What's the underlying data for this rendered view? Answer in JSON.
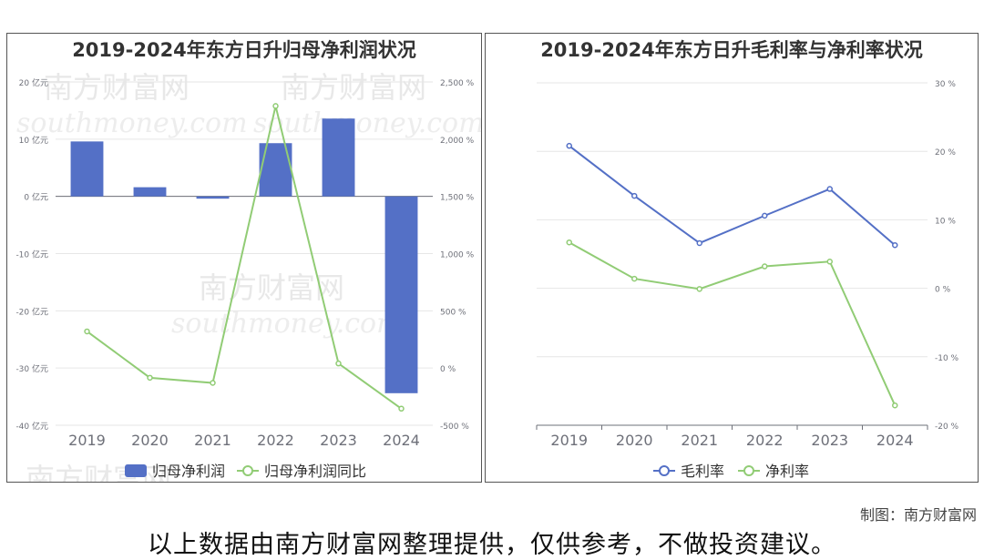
{
  "charts": {
    "left": {
      "title": "2019-2024年东方日升归母净利润状况"
    },
    "right": {
      "title": "2019-2024年东方日升毛利率与净利率状况"
    }
  },
  "watermark": {
    "brand": "南方财富网",
    "domain": "southmoney.com"
  },
  "credit": "制图：南方财富网",
  "footer_note": "以上数据由南方财富网整理提供，仅供参考，不做投资建议。",
  "colors": {
    "blue": "#5470c6",
    "green": "#91cc75",
    "grid": "#e6e6e6",
    "axis": "#6e7079"
  },
  "chart_data": [
    {
      "type": "bar+line",
      "title": "2019-2024年东方日升归母净利润状况",
      "categories": [
        "2019",
        "2020",
        "2021",
        "2022",
        "2023",
        "2024"
      ],
      "y_left": {
        "ticks": [
          20,
          10,
          0,
          -10,
          -20,
          -30,
          -40
        ],
        "tick_labels": [
          "20 亿元",
          "10 亿元",
          "0 亿元",
          "-10 亿元",
          "-20 亿元",
          "-30 亿元",
          "-40 亿元"
        ],
        "range": [
          -40,
          20
        ]
      },
      "y_right": {
        "ticks": [
          2500,
          2000,
          1500,
          1000,
          500,
          0,
          -500
        ],
        "tick_labels": [
          "2,500 %",
          "2,000 %",
          "1,500 %",
          "1,000 %",
          "500 %",
          "0 %",
          "-500 %"
        ],
        "range": [
          -500,
          2500
        ]
      },
      "series": [
        {
          "name": "归母净利润",
          "type": "bar",
          "axis": "left",
          "color": "#5470c6",
          "values": [
            9.6,
            1.6,
            -0.4,
            9.3,
            13.6,
            -34.4
          ]
        },
        {
          "name": "归母净利润同比",
          "type": "line",
          "axis": "right",
          "color": "#91cc75",
          "values": [
            320,
            -85,
            -130,
            2290,
            40,
            -355
          ]
        }
      ],
      "legend": "bottom-center",
      "grid": true
    },
    {
      "type": "line",
      "title": "2019-2024年东方日升毛利率与净利率状况",
      "categories": [
        "2019",
        "2020",
        "2021",
        "2022",
        "2023",
        "2024"
      ],
      "y_right": {
        "ticks": [
          30,
          20,
          10,
          0,
          -10,
          -20
        ],
        "tick_labels": [
          "30 %",
          "20 %",
          "10 %",
          "0 %",
          "-10 %",
          "-20 %"
        ],
        "range": [
          -20,
          30
        ]
      },
      "series": [
        {
          "name": "毛利率",
          "axis": "right",
          "color": "#5470c6",
          "values": [
            20.8,
            13.5,
            6.6,
            10.6,
            14.5,
            6.3
          ]
        },
        {
          "name": "净利率",
          "axis": "right",
          "color": "#91cc75",
          "values": [
            6.7,
            1.4,
            -0.1,
            3.2,
            3.9,
            -17.1
          ]
        }
      ],
      "legend": "bottom-center",
      "grid": true
    }
  ]
}
